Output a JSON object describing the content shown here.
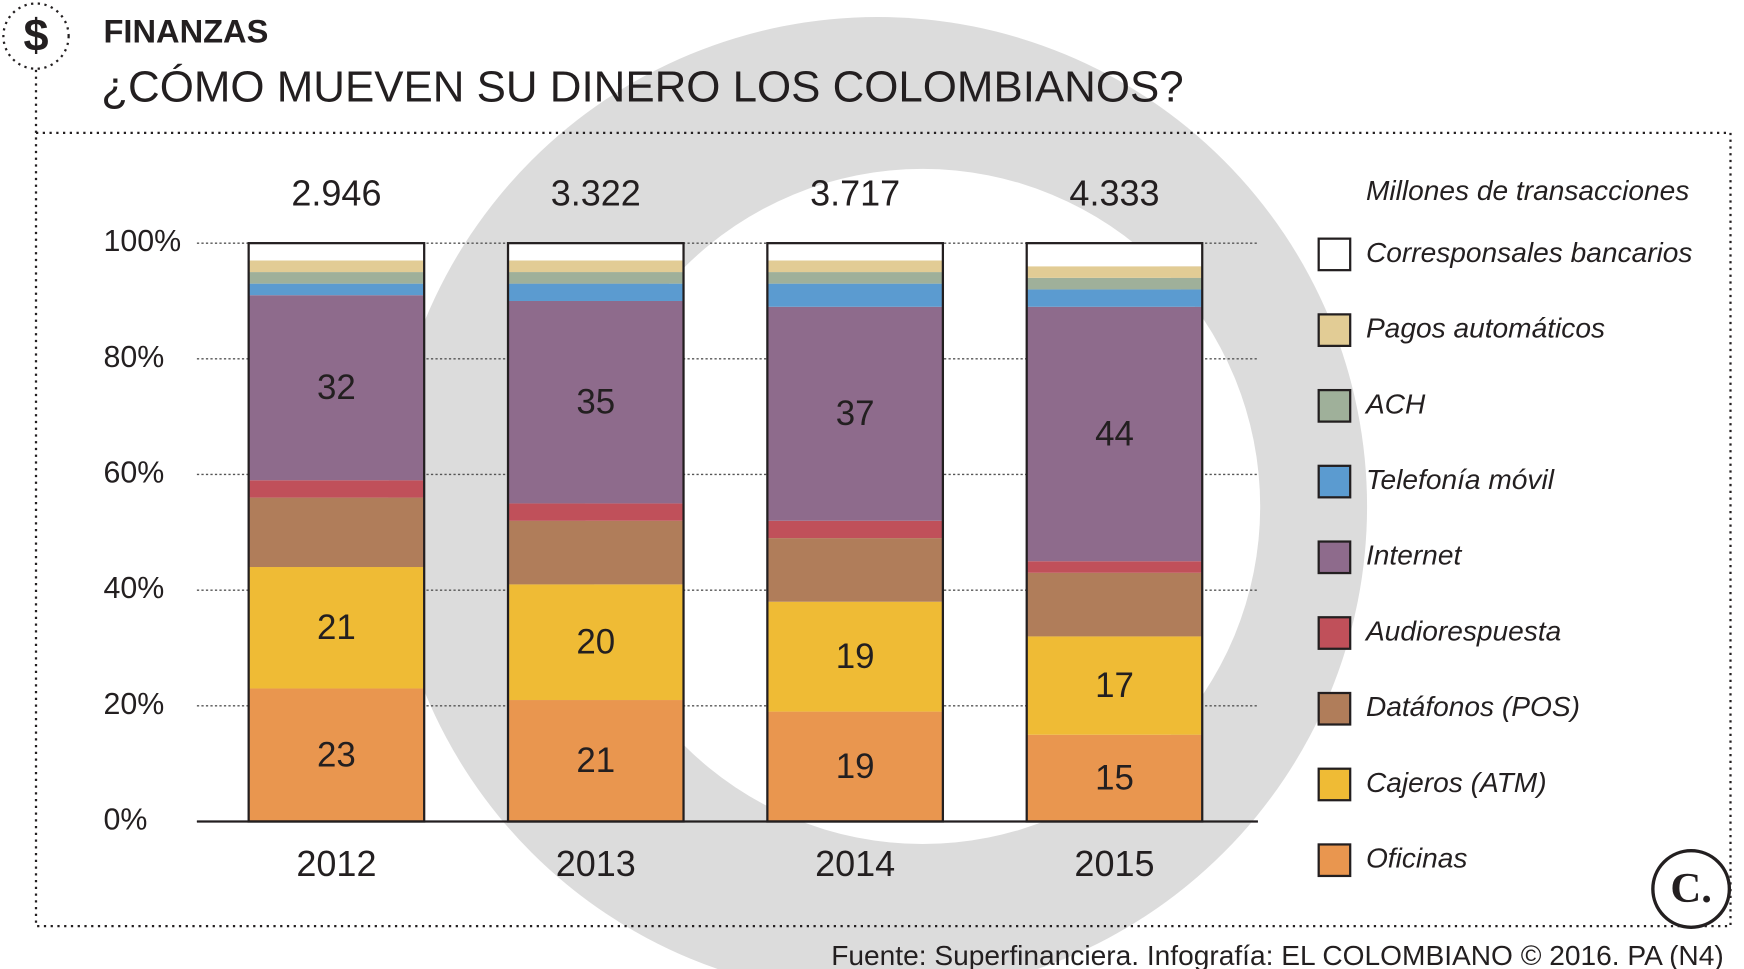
{
  "chart_data": {
    "type": "stacked_bar_100",
    "section": "FINANZAS",
    "icon": "$",
    "title": "¿CÓMO MUEVEN SU DINERO LOS COLOMBIANOS?",
    "legend_title": "Millones de transacciones",
    "source": "Fuente: Superfinanciera. Infografía: EL COLOMBIANO © 2016. PA (N4)",
    "logo": "C.",
    "categories": [
      "2012",
      "2013",
      "2014",
      "2015"
    ],
    "totals": [
      2946,
      3322,
      3717,
      4333
    ],
    "total_labels": [
      "2.946",
      "3.322",
      "3.717",
      "4.333"
    ],
    "ylim": [
      0,
      100
    ],
    "yticks": [
      {
        "value": 0,
        "label": "0%"
      },
      {
        "value": 20,
        "label": "20%"
      },
      {
        "value": 40,
        "label": "40%"
      },
      {
        "value": 60,
        "label": "60%"
      },
      {
        "value": 80,
        "label": "80%"
      },
      {
        "value": 100,
        "label": "100%"
      }
    ],
    "grid": true,
    "legend": "right",
    "series": [
      {
        "name": "Oficinas",
        "color": "#e9964f",
        "values": [
          23,
          21,
          19,
          15
        ],
        "show_values": true
      },
      {
        "name": "Cajeros (ATM)",
        "color": "#efbb35",
        "values": [
          21,
          20,
          19,
          17
        ],
        "show_values": true
      },
      {
        "name": "Datáfonos (POS)",
        "color": "#b07d5a",
        "values": [
          12,
          11,
          11,
          11
        ]
      },
      {
        "name": "Audiorespuesta",
        "color": "#c0505a",
        "values": [
          3,
          3,
          3,
          2
        ]
      },
      {
        "name": "Internet",
        "color": "#8e6b8c",
        "values": [
          32,
          35,
          37,
          44
        ],
        "show_values": true
      },
      {
        "name": "Telefonía móvil",
        "color": "#5b9bd0",
        "values": [
          2,
          3,
          4,
          3
        ]
      },
      {
        "name": "ACH",
        "color": "#9fb09a",
        "values": [
          2,
          2,
          2,
          2
        ]
      },
      {
        "name": "Pagos automáticos",
        "color": "#e2cc95",
        "values": [
          2,
          2,
          2,
          2
        ]
      },
      {
        "name": "Corresponsales bancarios",
        "color": "#ffffff",
        "values": [
          3,
          3,
          3,
          4
        ]
      }
    ]
  }
}
